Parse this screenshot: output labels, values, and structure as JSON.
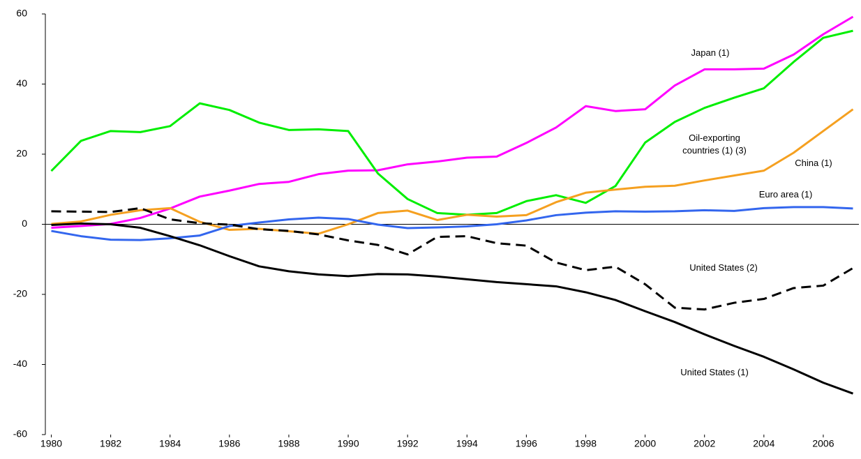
{
  "chart_data": {
    "type": "line",
    "x": [
      1980,
      1981,
      1982,
      1983,
      1984,
      1985,
      1986,
      1987,
      1988,
      1989,
      1990,
      1991,
      1992,
      1993,
      1994,
      1995,
      1996,
      1997,
      1998,
      1999,
      2000,
      2001,
      2002,
      2003,
      2004,
      2005,
      2006,
      2007
    ],
    "xlim": [
      1979.8,
      2007.2
    ],
    "xticks": [
      1980,
      1982,
      1984,
      1986,
      1988,
      1990,
      1992,
      1994,
      1996,
      1998,
      2000,
      2002,
      2004,
      2006
    ],
    "ylim": [
      -60,
      60
    ],
    "yticks": [
      -60,
      -40,
      -20,
      0,
      20,
      40,
      60
    ],
    "series": [
      {
        "name": "Japan (1)",
        "color": "#ff00ff",
        "values": [
          -1.0,
          -0.5,
          0.1,
          1.8,
          4.5,
          7.9,
          9.6,
          11.5,
          12.1,
          14.3,
          15.3,
          15.4,
          17.1,
          17.9,
          19.0,
          19.3,
          23.2,
          27.6,
          33.7,
          32.3,
          32.8,
          39.6,
          44.2,
          44.2,
          44.4,
          48.4,
          54.2,
          59.2
        ]
      },
      {
        "name": "Oil-exporting countries (1) (3)",
        "color": "#00ee00",
        "values": [
          15.2,
          23.8,
          26.6,
          26.3,
          28.0,
          34.5,
          32.6,
          29.0,
          26.9,
          27.1,
          26.6,
          14.5,
          7.2,
          3.2,
          2.7,
          3.2,
          6.6,
          8.3,
          6.1,
          10.9,
          23.3,
          29.2,
          33.2,
          36.1,
          38.8,
          46.3,
          53.2,
          55.2
        ]
      },
      {
        "name": "China (1)",
        "color": "#f5a020",
        "values": [
          0.1,
          0.8,
          2.7,
          4.0,
          4.6,
          0.7,
          -1.6,
          -1.3,
          -2.0,
          -2.7,
          0.0,
          3.2,
          3.9,
          1.2,
          2.7,
          2.2,
          2.6,
          6.3,
          9.0,
          9.9,
          10.7,
          11.0,
          12.5,
          13.9,
          15.3,
          20.4,
          26.6,
          32.8
        ]
      },
      {
        "name": "Euro area (1)",
        "color": "#3366ee",
        "values": [
          -1.9,
          -3.4,
          -4.4,
          -4.5,
          -4.0,
          -3.2,
          -0.5,
          0.5,
          1.4,
          1.9,
          1.5,
          -0.1,
          -1.1,
          -0.9,
          -0.6,
          0.0,
          1.1,
          2.6,
          3.3,
          3.7,
          3.6,
          3.7,
          4.0,
          3.8,
          4.6,
          4.9,
          4.9,
          4.5
        ]
      },
      {
        "name": "United States (2)",
        "color": "#000000",
        "dash": true,
        "values": [
          3.7,
          3.6,
          3.5,
          4.6,
          1.4,
          0.3,
          -0.1,
          -1.4,
          -1.9,
          -2.9,
          -4.6,
          -5.9,
          -8.6,
          -3.6,
          -3.4,
          -5.4,
          -6.1,
          -10.9,
          -13.1,
          -12.1,
          -17.1,
          -23.8,
          -24.3,
          -22.4,
          -21.3,
          -18.2,
          -17.5,
          -12.5
        ]
      },
      {
        "name": "United States (1)",
        "color": "#000000",
        "values": [
          -0.2,
          0.2,
          0.0,
          -1.0,
          -3.4,
          -6.0,
          -9.1,
          -12.0,
          -13.4,
          -14.3,
          -14.8,
          -14.2,
          -14.3,
          -14.9,
          -15.7,
          -16.5,
          -17.1,
          -17.7,
          -19.4,
          -21.6,
          -24.8,
          -27.9,
          -31.4,
          -34.7,
          -37.8,
          -41.4,
          -45.2,
          -48.3
        ]
      }
    ]
  }
}
